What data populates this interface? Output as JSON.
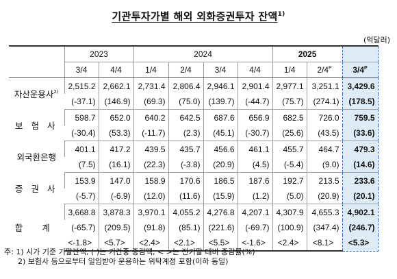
{
  "title": "기관투자가별 해외 외화증권투자 잔액",
  "title_note": "1)",
  "unit": "(억달러)",
  "years": [
    "2023",
    "2024",
    "2025"
  ],
  "quarters": [
    "3/4",
    "4/4",
    "1/4",
    "2/4",
    "3/4",
    "4/4",
    "1/4",
    "2/4",
    "3/4"
  ],
  "quarter_marks": [
    "",
    "",
    "",
    "",
    "",
    "",
    "",
    "P",
    "P"
  ],
  "rows": [
    {
      "label": "자산운용사",
      "label_note": "2)",
      "values": [
        "2,515.2",
        "2,662.1",
        "2,731.4",
        "2,806.4",
        "2,946.1",
        "2,901.4",
        "2,977.1",
        "3,251.1",
        "3,429.6"
      ],
      "changes": [
        "(-37.1)",
        "(146.9)",
        "(69.3)",
        "(75.0)",
        "(139.7)",
        "(-44.7)",
        "(75.7)",
        "(274.1)",
        "(178.5)"
      ]
    },
    {
      "label": "보 험 사",
      "label_note": "",
      "values": [
        "598.7",
        "652.0",
        "640.2",
        "642.5",
        "687.6",
        "656.9",
        "682.5",
        "726.0",
        "759.5"
      ],
      "changes": [
        "(-30.4)",
        "(53.3)",
        "(-11.7)",
        "(2.3)",
        "(45.1)",
        "(-30.7)",
        "(25.6)",
        "(43.5)",
        "(33.6)"
      ]
    },
    {
      "label": "외국환은행",
      "label_note": "",
      "values": [
        "401.1",
        "417.2",
        "439.5",
        "435.7",
        "456.6",
        "461.1",
        "455.7",
        "464.7",
        "479.3"
      ],
      "changes": [
        "(7.5)",
        "(16.1)",
        "(22.3)",
        "(-3.8)",
        "(20.9)",
        "(4.5)",
        "(-5.4)",
        "(9.0)",
        "(14.6)"
      ]
    },
    {
      "label": "증 권 사",
      "label_note": "",
      "values": [
        "153.9",
        "147.0",
        "158.9",
        "170.6",
        "186.5",
        "187.6",
        "192.7",
        "213.5",
        "233.6"
      ],
      "changes": [
        "(-5.7)",
        "(-6.9)",
        "(12.0)",
        "(11.6)",
        "(15.9)",
        "(1.2)",
        "(5.0)",
        "(20.9)",
        "(20.1)"
      ]
    }
  ],
  "total": {
    "label": "합 계",
    "values": [
      "3,668.8",
      "3,878.3",
      "3,970.1",
      "4,055.2",
      "4,276.8",
      "4,207.1",
      "4,307.9",
      "4,655.3",
      "4,902.1"
    ],
    "changes": [
      "(-65.7)",
      "(209.5)",
      "(91.8)",
      "(85.1)",
      "(221.6)",
      "(-69.7)",
      "(100.9)",
      "(347.4)",
      "(246.7)"
    ],
    "rates": [
      "<-1.8>",
      "<5.7>",
      "<2.4>",
      "<2.1>",
      "<5.5>",
      "<-1.6>",
      "<2.4>",
      "<8.1>",
      "<5.3>"
    ]
  },
  "notes": [
    "주: 1) 시가 기준 기말잔액, (  )는 기간중 증감액, <  >는 전기말 대비 증감률(%)",
    "2) 보험사 등으로부터 일임받아 운용하는 위탁계정 포함(이하 동일)"
  ]
}
